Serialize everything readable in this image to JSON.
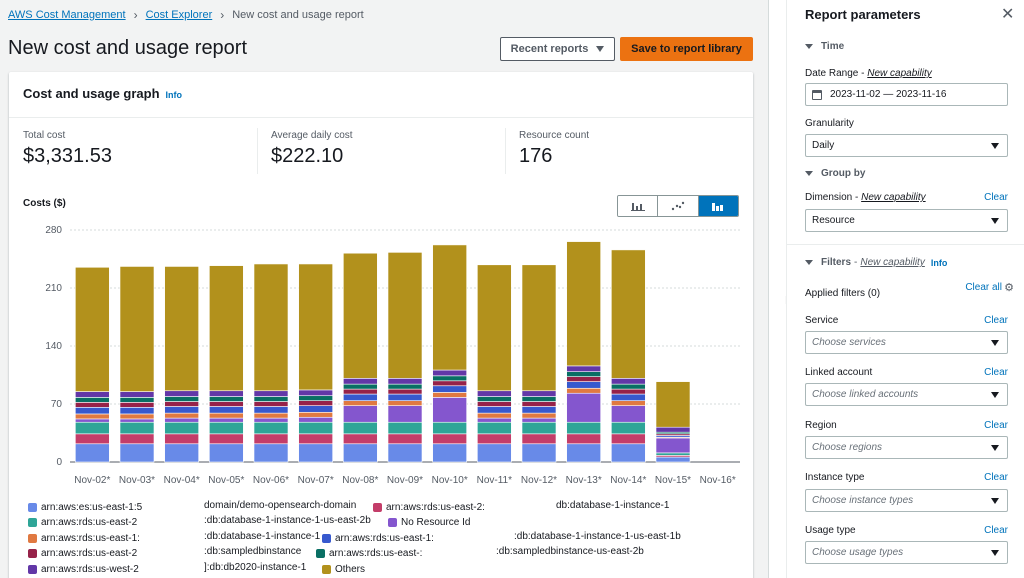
{
  "breadcrumb": {
    "items": [
      "AWS Cost Management",
      "Cost Explorer"
    ],
    "separator": "›",
    "current": "New cost and usage report"
  },
  "page": {
    "title": "New cost and usage report",
    "recent_reports_label": "Recent reports",
    "save_label": "Save to report library"
  },
  "card": {
    "title": "Cost and usage graph",
    "info_label": "Info",
    "costs_label": "Costs ($)"
  },
  "metrics": [
    {
      "label": "Total cost",
      "value": "$3,331.53"
    },
    {
      "label": "Average daily cost",
      "value": "$222.10"
    },
    {
      "label": "Resource count",
      "value": "176"
    }
  ],
  "chart_data": {
    "type": "bar",
    "stacked": true,
    "title": "Cost and usage graph",
    "ylabel": "Costs ($)",
    "ylim": [
      0,
      280
    ],
    "yticks": [
      0,
      70,
      140,
      210,
      280
    ],
    "categories": [
      "Nov-02*",
      "Nov-03*",
      "Nov-04*",
      "Nov-05*",
      "Nov-06*",
      "Nov-07*",
      "Nov-08*",
      "Nov-09*",
      "Nov-10*",
      "Nov-11*",
      "Nov-12*",
      "Nov-13*",
      "Nov-14*",
      "Nov-15*",
      "Nov-16*"
    ],
    "series": [
      {
        "name": "arn:aws:es:us-east-1:",
        "color": "#688ae8",
        "values": [
          22,
          22,
          22,
          22,
          22,
          22,
          22,
          22,
          22,
          22,
          22,
          22,
          22,
          6,
          0
        ]
      },
      {
        "name": "arn:aws:rds:us-east-2",
        "color": "#c33d69",
        "values": [
          12,
          12,
          12,
          12,
          12,
          12,
          12,
          12,
          12,
          12,
          12,
          12,
          12,
          2,
          0
        ]
      },
      {
        "name": "arn:aws:rds:us-east-2",
        "color": "#2ea597",
        "values": [
          14,
          14,
          14,
          14,
          14,
          14,
          14,
          14,
          14,
          14,
          14,
          14,
          14,
          3,
          0
        ]
      },
      {
        "name": "No Resource Id",
        "color": "#8456ce",
        "values": [
          4,
          4,
          5,
          5,
          5,
          6,
          20,
          20,
          30,
          5,
          5,
          35,
          20,
          18,
          0
        ]
      },
      {
        "name": "arn:aws:rds:us-east-1",
        "color": "#e07941",
        "values": [
          6,
          6,
          6,
          6,
          6,
          6,
          6,
          6,
          6,
          6,
          6,
          6,
          6,
          1,
          0
        ]
      },
      {
        "name": "arn:aws:rds:us-east-1:",
        "color": "#3759ce",
        "values": [
          8,
          8,
          8,
          8,
          8,
          8,
          8,
          8,
          8,
          8,
          8,
          8,
          8,
          2,
          0
        ]
      },
      {
        "name": "arn:aws:rds:us-east-2",
        "color": "#962249",
        "values": [
          6,
          6,
          6,
          6,
          6,
          6,
          6,
          6,
          6,
          6,
          6,
          6,
          6,
          2,
          0
        ]
      },
      {
        "name": "arn:aws:rds:us-east-",
        "color": "#096f64",
        "values": [
          6,
          6,
          6,
          6,
          6,
          6,
          6,
          6,
          6,
          6,
          6,
          6,
          6,
          2,
          0
        ]
      },
      {
        "name": "arn:aws:rds:us-west-2",
        "color": "#6237a7",
        "values": [
          7,
          7,
          7,
          7,
          7,
          7,
          7,
          7,
          7,
          7,
          7,
          7,
          7,
          6,
          0
        ]
      },
      {
        "name": "Others",
        "color": "#b2911c",
        "values": [
          150,
          151,
          150,
          151,
          153,
          152,
          151,
          152,
          151,
          152,
          152,
          150,
          155,
          55,
          0
        ]
      }
    ]
  },
  "legend": {
    "entries": [
      {
        "label": "arn:aws:es:us-east-1:5",
        "color": "#688ae8"
      },
      {
        "label": "arn:aws:rds:us-east-2",
        "color": "#2ea597"
      },
      {
        "label": "arn:aws:rds:us-east-1:",
        "color": "#e07941"
      },
      {
        "label": "arn:aws:rds:us-east-2",
        "color": "#962249"
      },
      {
        "label": "arn:aws:rds:us-west-2",
        "color": "#6237a7"
      },
      {
        "label": "arn:aws:rds:us-east-2:",
        "color": "#c33d69"
      },
      {
        "label": "No Resource Id",
        "color": "#8456ce"
      },
      {
        "label": "arn:aws:rds:us-east-1:",
        "color": "#3759ce"
      },
      {
        "label": "arn:aws:rds:us-east-:",
        "color": "#096f64"
      },
      {
        "label": "Others",
        "color": "#b2911c"
      }
    ],
    "fragments": [
      "domain/demo-opensearch-domain",
      ":db:database-1-instance-1-us-east-2b",
      ":db:database-1-instance-1",
      ":db:sampledbinstance",
      "]:db:db2020-instance-1",
      "db:database-1-instance-1",
      ":db:database-1-instance-1-us-east-1b",
      ":db:sampledbinstance-us-east-2b"
    ]
  },
  "panel": {
    "title": "Report parameters",
    "sections": {
      "time": "Time",
      "group_by": "Group by",
      "filters": "Filters",
      "filters_cap": "New capability",
      "filters_info": "Info"
    },
    "date_range": {
      "label": "Date Range",
      "capability": "New capability",
      "value": "2023-11-02 — 2023-11-16"
    },
    "granularity": {
      "label": "Granularity",
      "value": "Daily"
    },
    "dimension": {
      "label": "Dimension",
      "capability": "New capability",
      "value": "Resource",
      "clear": "Clear"
    },
    "applied_filters": {
      "label": "Applied filters (0)",
      "clear_all": "Clear all"
    },
    "filters": [
      {
        "label": "Service",
        "placeholder": "Choose services",
        "clear": "Clear"
      },
      {
        "label": "Linked account",
        "placeholder": "Choose linked accounts",
        "clear": "Clear"
      },
      {
        "label": "Region",
        "placeholder": "Choose regions",
        "clear": "Clear"
      },
      {
        "label": "Instance type",
        "placeholder": "Choose instance types",
        "clear": "Clear"
      },
      {
        "label": "Usage type",
        "placeholder": "Choose usage types",
        "clear": "Clear"
      }
    ]
  }
}
